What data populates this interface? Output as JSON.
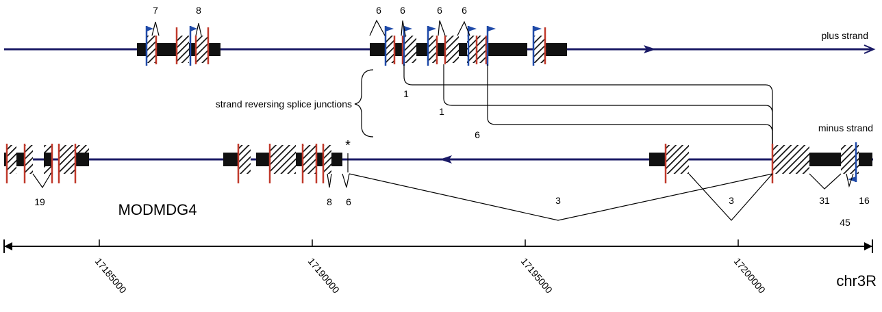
{
  "labels": {
    "plus_strand": "plus strand",
    "minus_strand": "minus strand",
    "strand_reversing": "strand reversing splice junctions",
    "gene": "MODMDG4",
    "chromosome": "chr3R",
    "star": "*"
  },
  "plus_junction_counts": [
    "7",
    "8",
    "6",
    "6",
    "6",
    "6"
  ],
  "minus_junction_counts": [
    "19",
    "8",
    "6",
    "3",
    "3",
    "31",
    "16",
    "45"
  ],
  "reversing_counts": [
    "1",
    "1",
    "6"
  ],
  "axis_ticks": [
    "17185000",
    "17190000",
    "17195000",
    "17200000"
  ],
  "colors": {
    "backbone": "#1a1a66",
    "exon": "#111111",
    "splice_site": "#c0392b",
    "tss_flag": "#1f4aa8",
    "hatch": "#111111"
  }
}
